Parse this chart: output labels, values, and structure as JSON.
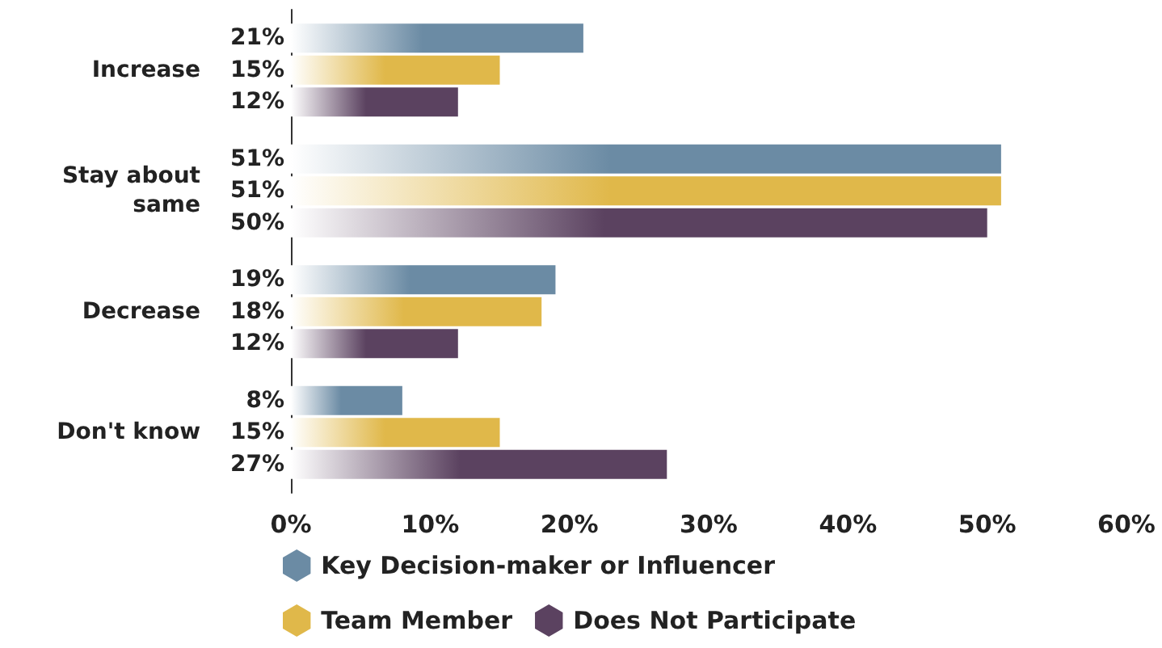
{
  "chart_data": {
    "type": "bar",
    "orientation": "horizontal",
    "categories": [
      "Increase",
      "Stay about\nsame",
      "Decrease",
      "Don't know"
    ],
    "series": [
      {
        "name": "Key Decision-maker or Influencer",
        "color": "#6b8ba4",
        "values": [
          21,
          51,
          19,
          8
        ],
        "value_labels": [
          "21%",
          "51%",
          "19%",
          "8%"
        ]
      },
      {
        "name": "Team Member",
        "color": "#e0b84a",
        "values": [
          15,
          51,
          18,
          15
        ],
        "value_labels": [
          "15%",
          "51%",
          "18%",
          "15%"
        ]
      },
      {
        "name": "Does Not Participate",
        "color": "#5b4260",
        "values": [
          12,
          50,
          12,
          27
        ],
        "value_labels": [
          "12%",
          "50%",
          "12%",
          "27%"
        ]
      }
    ],
    "xlim": [
      0,
      60
    ],
    "xticks": [
      {
        "value": 0,
        "label": "0%"
      },
      {
        "value": 10,
        "label": "10%"
      },
      {
        "value": 20,
        "label": "20%"
      },
      {
        "value": 30,
        "label": "30%"
      },
      {
        "value": 40,
        "label": "40%"
      },
      {
        "value": 50,
        "label": "50%"
      },
      {
        "value": 60,
        "label": "60%"
      }
    ],
    "legend": "bottom left"
  }
}
